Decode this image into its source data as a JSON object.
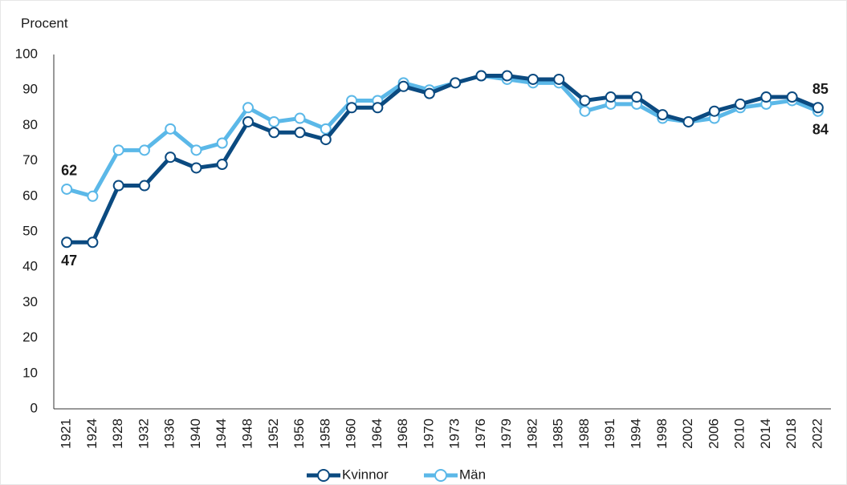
{
  "chart_data": {
    "type": "line",
    "y_label": "Procent",
    "categories": [
      "1921",
      "1924",
      "1928",
      "1932",
      "1936",
      "1940",
      "1944",
      "1948",
      "1952",
      "1956",
      "1958",
      "1960",
      "1964",
      "1968",
      "1970",
      "1973",
      "1976",
      "1979",
      "1982",
      "1985",
      "1988",
      "1991",
      "1994",
      "1998",
      "2002",
      "2006",
      "2010",
      "2014",
      "2018",
      "2022"
    ],
    "series": [
      {
        "name": "Kvinnor",
        "color": "#0b4a80",
        "values": [
          47,
          47,
          63,
          63,
          71,
          68,
          69,
          81,
          78,
          78,
          76,
          85,
          85,
          91,
          89,
          92,
          94,
          94,
          93,
          93,
          87,
          88,
          88,
          83,
          81,
          84,
          86,
          88,
          88,
          85
        ]
      },
      {
        "name": "Män",
        "color": "#5bb8e8",
        "values": [
          62,
          60,
          73,
          73,
          79,
          73,
          75,
          85,
          81,
          82,
          79,
          87,
          87,
          92,
          90,
          92,
          94,
          93,
          92,
          92,
          84,
          86,
          86,
          82,
          81,
          82,
          85,
          86,
          87,
          84
        ]
      }
    ],
    "ylim": [
      0,
      100
    ],
    "yticks": [
      0,
      10,
      20,
      30,
      40,
      50,
      60,
      70,
      80,
      90,
      100
    ],
    "grid": false,
    "legend": "bottom"
  }
}
